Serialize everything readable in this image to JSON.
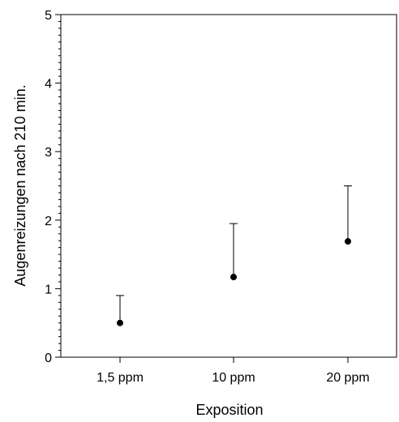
{
  "chart_data": {
    "type": "scatter",
    "categories": [
      "1,5 ppm",
      "10 ppm",
      "20 ppm"
    ],
    "values": [
      0.5,
      1.17,
      1.69
    ],
    "error_upper": [
      0.9,
      1.95,
      2.5
    ],
    "xlabel": "Exposition",
    "ylabel": "Augenreizungen nach 210 min.",
    "ylim": [
      0,
      5
    ],
    "yticks": [
      "0",
      "1",
      "2",
      "3",
      "4",
      "5"
    ],
    "grid": false,
    "colors": {
      "marker": "#000000",
      "axis": "#000000"
    }
  }
}
